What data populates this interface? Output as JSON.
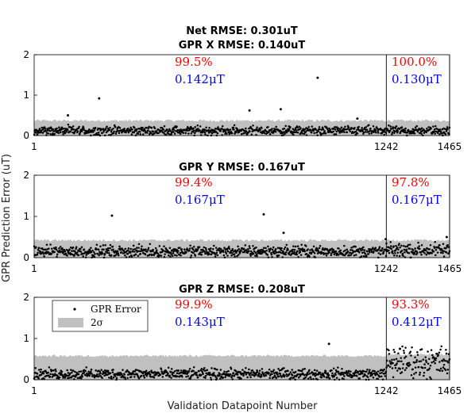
{
  "figure": {
    "ylabel": "GPR Prediction Error (uT)",
    "xlabel": "Validation Datapoint Number",
    "legend": {
      "placement": "top-left (bottom panel)",
      "items": [
        "GPR Error",
        "2σ"
      ]
    }
  },
  "colors": {
    "percent": "#ff0000",
    "rmse": "#0000ff",
    "band": "#c0c0c0",
    "points": "#000000"
  },
  "chart_data": [
    {
      "type": "scatter",
      "title_lines": [
        "Net RMSE: 0.301uT",
        "GPR X RMSE: 0.140uT"
      ],
      "ylim": [
        0,
        2
      ],
      "yticks": [
        0,
        1,
        2
      ],
      "xlim": [
        1,
        1465
      ],
      "xticks": [
        1,
        1242,
        1465
      ],
      "vlines": [
        1242,
        1465
      ],
      "annotations": {
        "left": {
          "percent": "99.5%",
          "rmse": "0.142μT"
        },
        "right": {
          "percent": "100.0%",
          "rmse": "0.130μT"
        }
      },
      "band_level": 0.37,
      "band_level_right": 0.37,
      "typical_error": 0.12,
      "typical_error_right": 0.12,
      "outliers": [
        [
          120,
          0.5
        ],
        [
          230,
          0.92
        ],
        [
          760,
          0.62
        ],
        [
          870,
          0.65
        ],
        [
          1000,
          1.43
        ],
        [
          1140,
          0.42
        ]
      ]
    },
    {
      "type": "scatter",
      "title_lines": [
        "GPR Y RMSE: 0.167uT"
      ],
      "ylim": [
        0,
        2
      ],
      "yticks": [
        0,
        1,
        2
      ],
      "xlim": [
        1,
        1465
      ],
      "xticks": [
        1,
        1242,
        1465
      ],
      "vlines": [
        1242,
        1465
      ],
      "annotations": {
        "left": {
          "percent": "99.4%",
          "rmse": "0.167μT"
        },
        "right": {
          "percent": "97.8%",
          "rmse": "0.167μT"
        }
      },
      "band_level": 0.42,
      "band_level_right": 0.42,
      "typical_error": 0.15,
      "typical_error_right": 0.18,
      "outliers": [
        [
          275,
          1.02
        ],
        [
          810,
          1.05
        ],
        [
          880,
          0.6
        ],
        [
          1240,
          0.45
        ],
        [
          1455,
          0.5
        ]
      ]
    },
    {
      "type": "scatter",
      "title_lines": [
        "GPR Z RMSE: 0.208uT"
      ],
      "ylim": [
        0,
        2
      ],
      "yticks": [
        0,
        1,
        2
      ],
      "xlim": [
        1,
        1465
      ],
      "xticks": [
        1,
        1242,
        1465
      ],
      "vlines": [
        1242,
        1465
      ],
      "annotations": {
        "left": {
          "percent": "99.9%",
          "rmse": "0.143μT"
        },
        "right": {
          "percent": "93.3%",
          "rmse": "0.412μT"
        }
      },
      "band_level": 0.58,
      "band_level_right": 0.62,
      "typical_error": 0.14,
      "typical_error_right": 0.42,
      "outliers": [
        [
          1040,
          0.87
        ],
        [
          1290,
          0.75
        ]
      ]
    }
  ]
}
